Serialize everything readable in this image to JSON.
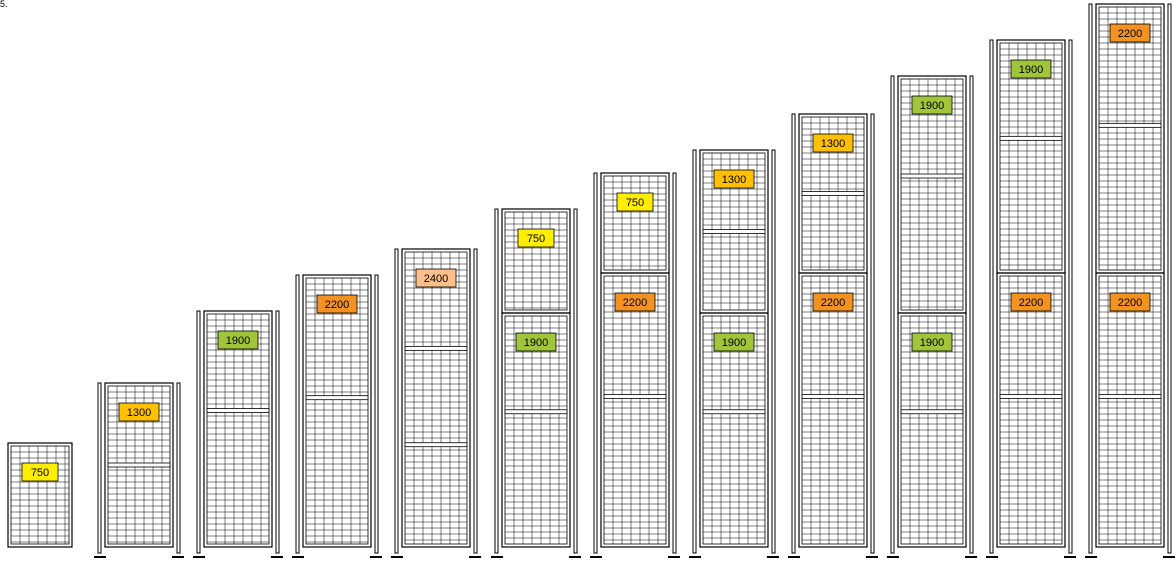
{
  "top_label": "5.",
  "colors": {
    "frame": "#000000",
    "mesh": "#000000",
    "background": "#ffffff",
    "label_border": "#000000",
    "label_750": "#ffee00",
    "label_1300": "#ffc000",
    "label_1900": "#a0c43a",
    "label_2200": "#f39220",
    "label_2400": "#fbc08a"
  },
  "panel_columns": [
    {
      "name": "column-1",
      "has_posts": false,
      "segments": [
        {
          "label": "750"
        }
      ]
    },
    {
      "name": "column-2",
      "has_posts": true,
      "segments": [
        {
          "label": "1300"
        }
      ]
    },
    {
      "name": "column-3",
      "has_posts": true,
      "segments": [
        {
          "label": "1900"
        }
      ]
    },
    {
      "name": "column-4",
      "has_posts": true,
      "segments": [
        {
          "label": "2200"
        }
      ]
    },
    {
      "name": "column-5",
      "has_posts": true,
      "segments": [
        {
          "label": "2400"
        }
      ]
    },
    {
      "name": "column-6",
      "has_posts": true,
      "segments": [
        {
          "label": "750"
        },
        {
          "label": "1900"
        }
      ]
    },
    {
      "name": "column-7",
      "has_posts": true,
      "segments": [
        {
          "label": "750"
        },
        {
          "label": "2200"
        }
      ]
    },
    {
      "name": "column-8",
      "has_posts": true,
      "segments": [
        {
          "label": "1300"
        },
        {
          "label": "1900"
        }
      ]
    },
    {
      "name": "column-9",
      "has_posts": true,
      "segments": [
        {
          "label": "1300"
        },
        {
          "label": "2200"
        }
      ]
    },
    {
      "name": "column-10",
      "has_posts": true,
      "segments": [
        {
          "label": "1900"
        },
        {
          "label": "1900"
        }
      ]
    },
    {
      "name": "column-11",
      "has_posts": true,
      "segments": [
        {
          "label": "1900"
        },
        {
          "label": "2200"
        }
      ]
    },
    {
      "name": "column-12",
      "has_posts": true,
      "segments": [
        {
          "label": "2200"
        },
        {
          "label": "2200"
        }
      ]
    }
  ]
}
